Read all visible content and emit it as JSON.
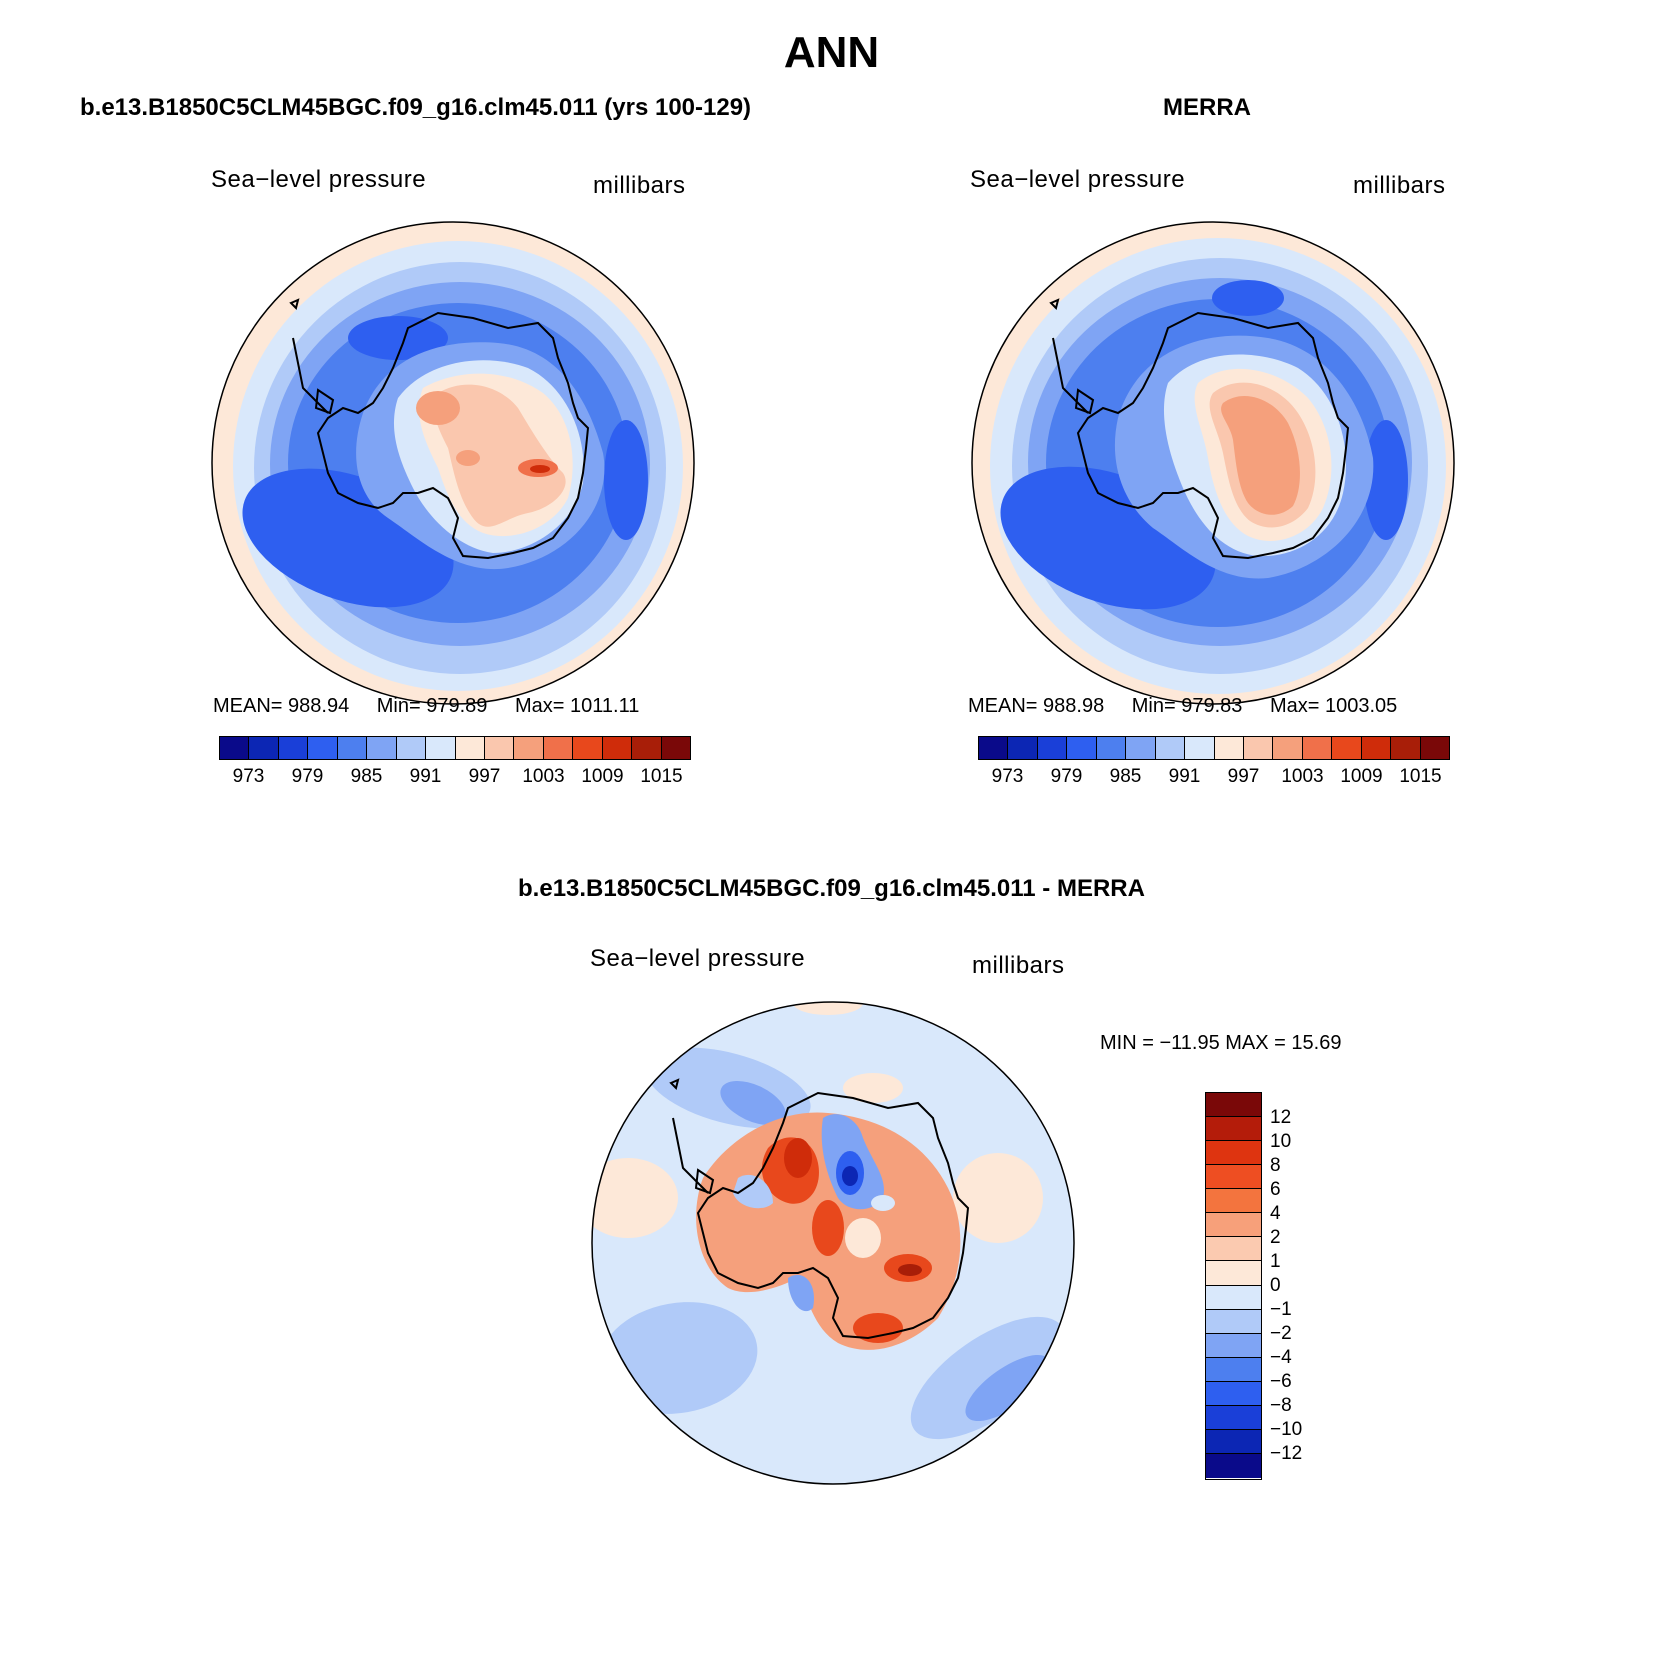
{
  "title": "ANN",
  "panels": {
    "model": {
      "title": "b.e13.B1850C5CLM45BGC.f09_g16.clm45.011 (yrs 100-129)",
      "variable": "Sea−level pressure",
      "units": "millibars",
      "stats": {
        "mean_label": "MEAN=",
        "mean": "988.94",
        "min_label": "Min=",
        "min": "979.89",
        "max_label": "Max=",
        "max": "1011.11"
      }
    },
    "obs": {
      "title": "MERRA",
      "variable": "Sea−level pressure",
      "units": "millibars",
      "stats": {
        "mean_label": "MEAN=",
        "mean": "988.98",
        "min_label": "Min=",
        "min": "979.83",
        "max_label": "Max=",
        "max": "1003.05"
      }
    },
    "diff": {
      "title": "b.e13.B1850C5CLM45BGC.f09_g16.clm45.011 - MERRA",
      "variable": "Sea−level pressure",
      "units": "millibars",
      "minmax": "MIN = −11.95 MAX =   15.69"
    }
  },
  "colorbar_abs": {
    "colors": [
      "#0a0a8a",
      "#0c26b4",
      "#1a3fd8",
      "#2e5ff0",
      "#4d7fef",
      "#7fa4f4",
      "#b0caf8",
      "#d9e8fb",
      "#fde8d8",
      "#fac7ae",
      "#f5a07c",
      "#f0704a",
      "#e8481c",
      "#cf2c0a",
      "#a81e08",
      "#7a0808"
    ],
    "labels": [
      "973",
      "979",
      "985",
      "991",
      "997",
      "1003",
      "1009",
      "1015"
    ]
  },
  "colorbar_diff": {
    "colors": [
      "#7a0808",
      "#b41c0a",
      "#de3410",
      "#ee4e22",
      "#f3743e",
      "#f7a07a",
      "#fbcab0",
      "#fde8d8",
      "#d9e8fb",
      "#b0caf8",
      "#7fa4f4",
      "#4d7fef",
      "#2e5ff0",
      "#1a3fd8",
      "#0c26b4",
      "#0a0a8a"
    ],
    "labels": [
      "12",
      "10",
      "8",
      "6",
      "4",
      "2",
      "1",
      "0",
      "−1",
      "−2",
      "−4",
      "−6",
      "−8",
      "−10",
      "−12"
    ]
  },
  "palette": {
    "ocean_ring": "#fde8d8",
    "light_blue": "#d9e8fb",
    "continent_outline": "#000000"
  }
}
